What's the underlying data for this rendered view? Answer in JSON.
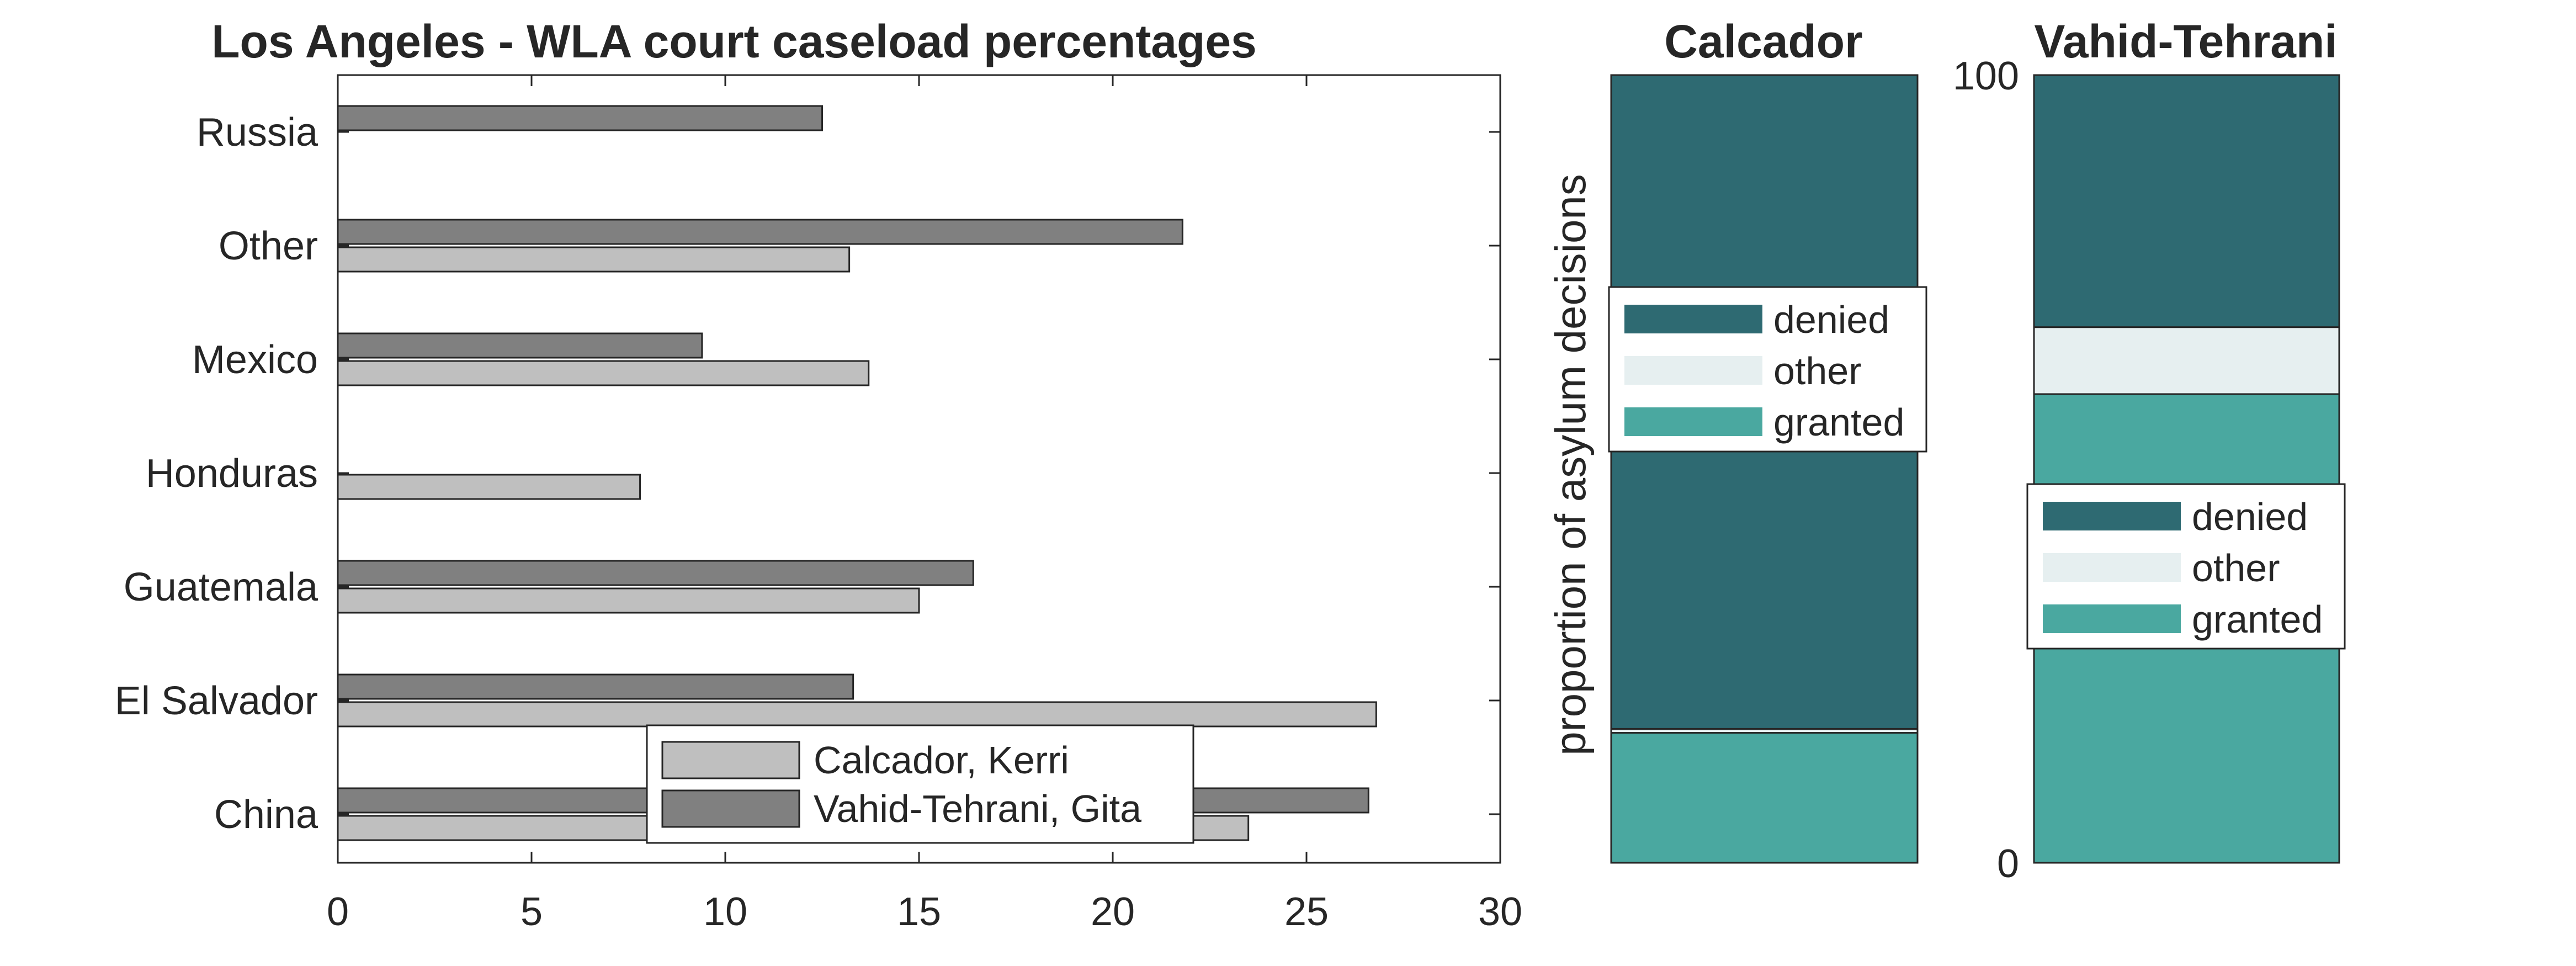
{
  "chart_data": [
    {
      "type": "bar",
      "orientation": "horizontal",
      "title": "Los Angeles - WLA court caseload percentages",
      "xlabel": "",
      "ylabel": "",
      "categories": [
        "China",
        "El Salvador",
        "Guatemala",
        "Honduras",
        "Mexico",
        "Other",
        "Russia"
      ],
      "series": [
        {
          "name": "Calcador, Kerri",
          "values": [
            23.5,
            26.8,
            15.0,
            7.8,
            13.7,
            13.2,
            0
          ],
          "color": "#bfbfbf"
        },
        {
          "name": "Vahid-Tehrani, Gita",
          "values": [
            26.6,
            13.3,
            16.4,
            0,
            9.4,
            21.8,
            12.5
          ],
          "color": "#808080"
        }
      ],
      "xlim": [
        0,
        30
      ],
      "xticks": [
        "0",
        "5",
        "10",
        "15",
        "20",
        "25",
        "30"
      ],
      "legend": "bottom-center",
      "grid": false
    },
    {
      "type": "bar",
      "stacked": true,
      "title": "Calcador",
      "ylabel": "proportion of asylum decisions",
      "ylim": [
        0,
        100
      ],
      "segments": [
        {
          "name": "granted",
          "value": 16.5,
          "color": "#4aa8a0"
        },
        {
          "name": "other",
          "value": 0.5,
          "color": "#e6eff0"
        },
        {
          "name": "denied",
          "value": 83.0,
          "color": "#2e6a72"
        }
      ],
      "legend_entries": [
        "denied",
        "other",
        "granted"
      ],
      "legend": "upper-middle"
    },
    {
      "type": "bar",
      "stacked": true,
      "title": "Vahid-Tehrani",
      "ylim": [
        0,
        100
      ],
      "yticks": [
        "0",
        "100"
      ],
      "segments": [
        {
          "name": "granted",
          "value": 59.5,
          "color": "#4aa8a0"
        },
        {
          "name": "other",
          "value": 8.5,
          "color": "#e6eff0"
        },
        {
          "name": "denied",
          "value": 32.0,
          "color": "#2e6a72"
        }
      ],
      "legend_entries": [
        "denied",
        "other",
        "granted"
      ],
      "legend": "middle"
    }
  ]
}
